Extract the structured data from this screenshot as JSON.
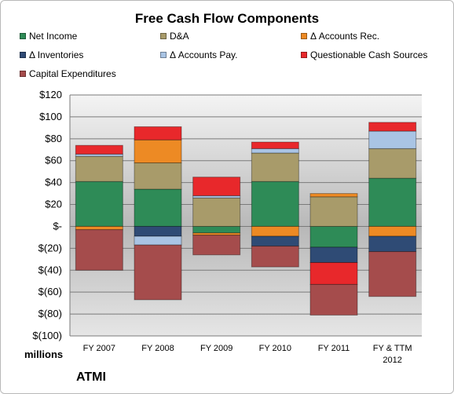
{
  "chart_data": {
    "type": "bar",
    "stacked": true,
    "title": "Free Cash Flow Components",
    "unit_label": "millions",
    "company": "ATMI",
    "categories": [
      "FY 2007",
      "FY 2008",
      "FY 2009",
      "FY 2010",
      "FY 2011",
      "FY & TTM 2012"
    ],
    "ylim": [
      -100,
      120
    ],
    "yticks": [
      120,
      100,
      80,
      60,
      40,
      20,
      0,
      -20,
      -40,
      -60,
      -80,
      -100
    ],
    "ytick_labels": [
      "$120",
      "$100",
      "$80",
      "$60",
      "$40",
      "$20",
      "$-",
      "$(20)",
      "$(40)",
      "$(60)",
      "$(80)",
      "$(100)"
    ],
    "grid": true,
    "legend_placement": "top",
    "series": [
      {
        "name": "Net Income",
        "color": "#2e8b57",
        "values": [
          41,
          34,
          -6,
          41,
          -19,
          44
        ]
      },
      {
        "name": "D&A",
        "color": "#a89b6a",
        "values": [
          23,
          24,
          26,
          26,
          27,
          27
        ]
      },
      {
        "name": "Δ Accounts Rec.",
        "color": "#ed8a24",
        "values": [
          -3,
          21,
          -2,
          -9,
          3,
          -9
        ]
      },
      {
        "name": "Δ Inventories",
        "color": "#2f4b75",
        "values": [
          0,
          -9,
          0,
          -9,
          -14,
          -14
        ]
      },
      {
        "name": "Δ Accounts Pay.",
        "color": "#a9c4e4",
        "values": [
          2,
          -8,
          2,
          4,
          0,
          16
        ]
      },
      {
        "name": "Questionable Cash Sources",
        "color": "#e8282b",
        "values": [
          8,
          12,
          17,
          6,
          -20,
          8
        ]
      },
      {
        "name": "Capital Expenditures",
        "color": "#a54c4c",
        "values": [
          -37,
          -50,
          -18,
          -19,
          -28,
          -41
        ]
      }
    ]
  }
}
